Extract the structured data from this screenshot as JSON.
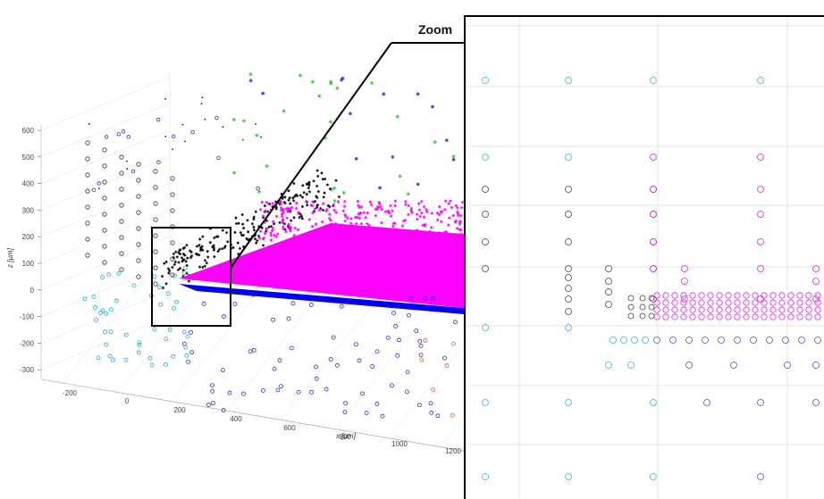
{
  "zoom_label": "Zoom",
  "chart_data": [
    {
      "type": "scatter",
      "title": "",
      "xlabel": "x [µm]",
      "ylabel": "",
      "zlabel": "z [µm]",
      "x_ticks": [
        "-200",
        "0",
        "200",
        "400",
        "600",
        "800",
        "1000",
        "1200"
      ],
      "z_ticks": [
        "600",
        "500",
        "400",
        "300",
        "200",
        "100",
        "0",
        "-100",
        "-200",
        "-300"
      ],
      "xlim": [
        -250,
        1300
      ],
      "zlim": [
        -350,
        650
      ],
      "grid": true,
      "series": [
        {
          "color": "#000000",
          "marker": "o / *"
        },
        {
          "color": "#00a0c8",
          "marker": "o"
        },
        {
          "color": "#0000dd",
          "marker": "o / *"
        },
        {
          "color": "#ff00ff",
          "marker": "*"
        },
        {
          "color": "#00cc00",
          "marker": "o / *"
        },
        {
          "color": "#e06020",
          "marker": "o"
        }
      ]
    },
    {
      "type": "scatter",
      "title": "",
      "xlabel": "",
      "ylabel": "",
      "grid": true,
      "series": [
        {
          "color": "#333333",
          "marker": "o"
        },
        {
          "color": "#3ab0d0",
          "marker": "o"
        },
        {
          "color": "#5050d0",
          "marker": "o"
        },
        {
          "color": "#e020e0",
          "marker": "o/x"
        },
        {
          "color": "#40c040",
          "marker": "o"
        }
      ]
    }
  ]
}
